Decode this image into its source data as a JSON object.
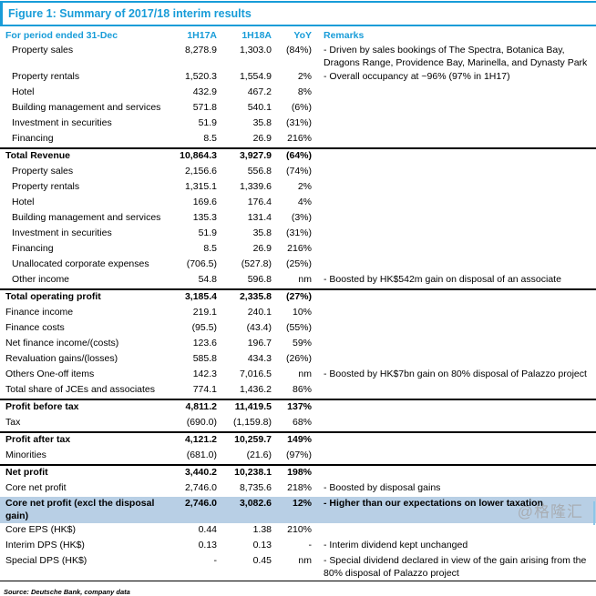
{
  "title": "Figure 1: Summary of 2017/18 interim results",
  "colors": {
    "accent_blue": "#189cd8",
    "highlight_row": "#b8cfe5",
    "watermark_gray": "#a8adb3"
  },
  "table": {
    "headers": [
      "For period ended 31-Dec",
      "1H17A",
      "1H18A",
      "YoY",
      "Remarks"
    ],
    "rows": [
      {
        "label": "Property sales",
        "v17": "8,278.9",
        "v18": "1,303.0",
        "yoy": "(84%)",
        "remark": "- Driven by sales bookings of The Spectra, Botanica Bay, Dragons Range, Providence Bay, Marinella, and Dynasty Park",
        "indent": true
      },
      {
        "label": "Property rentals",
        "v17": "1,520.3",
        "v18": "1,554.9",
        "yoy": "2%",
        "remark": "- Overall occupancy at ~96% (97% in 1H17)",
        "indent": true
      },
      {
        "label": "Hotel",
        "v17": "432.9",
        "v18": "467.2",
        "yoy": "8%",
        "remark": "",
        "indent": true
      },
      {
        "label": "Building management and services",
        "v17": "571.8",
        "v18": "540.1",
        "yoy": "(6%)",
        "remark": "",
        "indent": true
      },
      {
        "label": "Investment in securities",
        "v17": "51.9",
        "v18": "35.8",
        "yoy": "(31%)",
        "remark": "",
        "indent": true
      },
      {
        "label": "Financing",
        "v17": "8.5",
        "v18": "26.9",
        "yoy": "216%",
        "remark": "",
        "indent": true
      },
      {
        "label": "Total Revenue",
        "v17": "10,864.3",
        "v18": "3,927.9",
        "yoy": "(64%)",
        "remark": "",
        "bold": true,
        "sep": true
      },
      {
        "label": "Property sales",
        "v17": "2,156.6",
        "v18": "556.8",
        "yoy": "(74%)",
        "remark": "",
        "indent": true
      },
      {
        "label": "Property rentals",
        "v17": "1,315.1",
        "v18": "1,339.6",
        "yoy": "2%",
        "remark": "",
        "indent": true
      },
      {
        "label": "Hotel",
        "v17": "169.6",
        "v18": "176.4",
        "yoy": "4%",
        "remark": "",
        "indent": true
      },
      {
        "label": "Building management and services",
        "v17": "135.3",
        "v18": "131.4",
        "yoy": "(3%)",
        "remark": "",
        "indent": true
      },
      {
        "label": "Investment in securities",
        "v17": "51.9",
        "v18": "35.8",
        "yoy": "(31%)",
        "remark": "",
        "indent": true
      },
      {
        "label": "Financing",
        "v17": "8.5",
        "v18": "26.9",
        "yoy": "216%",
        "remark": "",
        "indent": true
      },
      {
        "label": "Unallocated corporate expenses",
        "v17": "(706.5)",
        "v18": "(527.8)",
        "yoy": "(25%)",
        "remark": "",
        "indent": true
      },
      {
        "label": "Other income",
        "v17": "54.8",
        "v18": "596.8",
        "yoy": "nm",
        "remark": "- Boosted by HK$542m gain on disposal of an associate",
        "indent": true
      },
      {
        "label": "Total operating profit",
        "v17": "3,185.4",
        "v18": "2,335.8",
        "yoy": "(27%)",
        "remark": "",
        "bold": true,
        "sep": true
      },
      {
        "label": "Finance income",
        "v17": "219.1",
        "v18": "240.1",
        "yoy": "10%",
        "remark": ""
      },
      {
        "label": "Finance costs",
        "v17": "(95.5)",
        "v18": "(43.4)",
        "yoy": "(55%)",
        "remark": ""
      },
      {
        "label": "Net finance income/(costs)",
        "v17": "123.6",
        "v18": "196.7",
        "yoy": "59%",
        "remark": ""
      },
      {
        "label": "Revaluation gains/(losses)",
        "v17": "585.8",
        "v18": "434.3",
        "yoy": "(26%)",
        "remark": ""
      },
      {
        "label": "Others One-off items",
        "v17": "142.3",
        "v18": "7,016.5",
        "yoy": "nm",
        "remark": "- Boosted by HK$7bn gain on 80% disposal of Palazzo project"
      },
      {
        "label": "Total share of JCEs and associates",
        "v17": "774.1",
        "v18": "1,436.2",
        "yoy": "86%",
        "remark": ""
      },
      {
        "label": "Profit before tax",
        "v17": "4,811.2",
        "v18": "11,419.5",
        "yoy": "137%",
        "remark": "",
        "bold": true,
        "sep": true
      },
      {
        "label": "Tax",
        "v17": "(690.0)",
        "v18": "(1,159.8)",
        "yoy": "68%",
        "remark": ""
      },
      {
        "label": "Profit after tax",
        "v17": "4,121.2",
        "v18": "10,259.7",
        "yoy": "149%",
        "remark": "",
        "bold": true,
        "sep": true
      },
      {
        "label": "Minorities",
        "v17": "(681.0)",
        "v18": "(21.6)",
        "yoy": "(97%)",
        "remark": ""
      },
      {
        "label": "Net profit",
        "v17": "3,440.2",
        "v18": "10,238.1",
        "yoy": "198%",
        "remark": "",
        "bold": true,
        "sep": true
      },
      {
        "label": "Core net profit",
        "v17": "2,746.0",
        "v18": "8,735.6",
        "yoy": "218%",
        "remark": "- Boosted by disposal gains"
      },
      {
        "label": "Core net profit (excl the disposal gain)",
        "v17": "2,746.0",
        "v18": "3,082.6",
        "yoy": "12%",
        "remark": "- Higher than our expectations on lower taxation",
        "bold": true,
        "highlight": true
      },
      {
        "label": "Core EPS (HK$)",
        "v17": "0.44",
        "v18": "1.38",
        "yoy": "210%",
        "remark": ""
      },
      {
        "label": "Interim DPS (HK$)",
        "v17": "0.13",
        "v18": "0.13",
        "yoy": "-",
        "remark": "- Interim dividend kept unchanged"
      },
      {
        "label": "Special DPS (HK$)",
        "v17": "-",
        "v18": "0.45",
        "yoy": "nm",
        "remark": "- Special dividend declared in view of the gain arising from the 80% disposal of Palazzo project"
      }
    ]
  },
  "source_note": "Source: Deutsche Bank, company data",
  "watermark": "@格隆汇"
}
